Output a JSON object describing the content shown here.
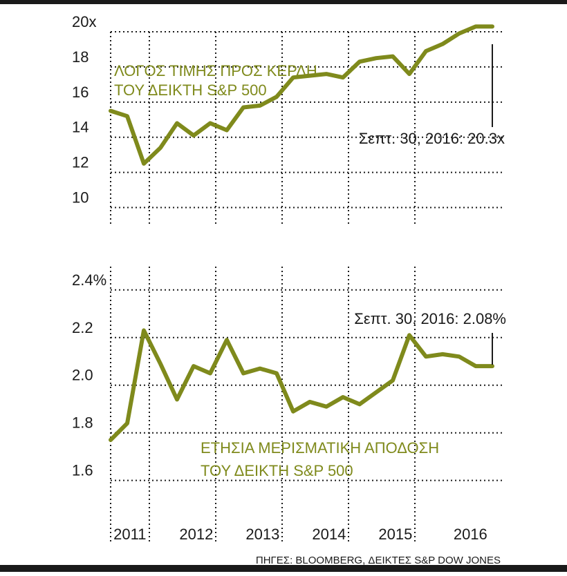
{
  "colors": {
    "series": "#7f8a1c",
    "text": "#1a1a1a"
  },
  "source": "ΠΗΓΕΣ: BLOOMBERG, ΔΕΙΚΤΕΣ S&P DOW JONES",
  "chart_data": [
    {
      "type": "line",
      "title_lines": [
        "ΛΟΓΟΣ ΤΙΜΗΣ ΠΡΟΣ ΚΕΡΔΗ",
        "ΤΟΥ ΔΕΙΚΤΗ S&P 500"
      ],
      "ylim": [
        9,
        20
      ],
      "yticks": [
        10,
        12,
        14,
        16,
        18,
        20
      ],
      "ytick_labels": [
        "10",
        "12",
        "14",
        "16",
        "18",
        "20x"
      ],
      "x_years": [
        "2011",
        "2012",
        "2013",
        "2014",
        "2015",
        "2016"
      ],
      "series": [
        {
          "x": [
            2010.75,
            2011.0,
            2011.25,
            2011.5,
            2011.75,
            2012.0,
            2012.25,
            2012.5,
            2012.75,
            2013.0,
            2013.25,
            2013.5,
            2013.75,
            2014.0,
            2014.25,
            2014.5,
            2014.75,
            2015.0,
            2015.25,
            2015.5,
            2015.75,
            2016.0,
            2016.25,
            2016.5
          ],
          "values": [
            15.5,
            15.2,
            12.5,
            13.4,
            14.8,
            14.1,
            14.8,
            14.4,
            15.7,
            15.8,
            16.3,
            17.4,
            17.5,
            17.6,
            17.4,
            18.3,
            18.5,
            18.6,
            17.6,
            18.9,
            19.3,
            19.9,
            20.3,
            20.3
          ]
        }
      ],
      "annotation": "Σεπτ. 30, 2016: 20.3x"
    },
    {
      "type": "line",
      "title_lines": [
        "ΕΤΗΣΙΑ ΜΕΡΙΣΜΑΤΙΚΗ ΑΠΟΔΟΣΗ",
        "ΤΟΥ ΔΕΙΚΤΗ S&P 500"
      ],
      "ylim": [
        1.57,
        2.44
      ],
      "yticks": [
        1.6,
        1.8,
        2.0,
        2.2,
        2.4
      ],
      "ytick_labels": [
        "1.6",
        "1.8",
        "2.0",
        "2.2",
        "2.4%"
      ],
      "x_years": [
        "2011",
        "2012",
        "2013",
        "2014",
        "2015",
        "2016"
      ],
      "series": [
        {
          "x": [
            2010.75,
            2011.0,
            2011.25,
            2011.5,
            2011.75,
            2012.0,
            2012.25,
            2012.5,
            2012.75,
            2013.0,
            2013.25,
            2013.5,
            2013.75,
            2014.0,
            2014.25,
            2014.5,
            2014.75,
            2015.0,
            2015.25,
            2015.5,
            2015.75,
            2016.0,
            2016.25,
            2016.5
          ],
          "values": [
            1.77,
            1.84,
            2.23,
            2.09,
            1.94,
            2.08,
            2.05,
            2.19,
            2.05,
            2.07,
            2.05,
            1.89,
            1.93,
            1.91,
            1.95,
            1.92,
            1.97,
            2.02,
            2.21,
            2.12,
            2.13,
            2.12,
            2.08,
            2.08
          ]
        }
      ],
      "annotation": "Σεπτ. 30, 2016: 2.08%"
    }
  ]
}
